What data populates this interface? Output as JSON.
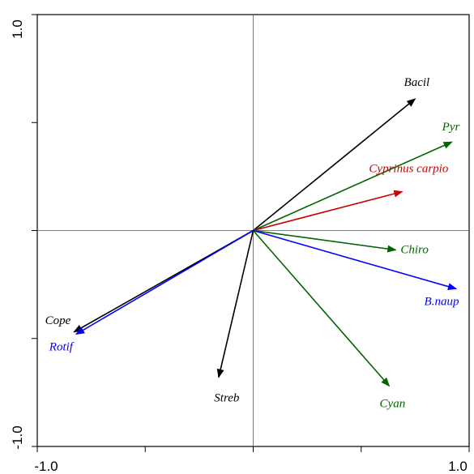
{
  "chart_data": {
    "type": "scatter",
    "subtype": "biplot-vectors",
    "title": "",
    "xlabel": "",
    "ylabel": "",
    "xlim": [
      -1.0,
      1.0
    ],
    "ylim": [
      -1.0,
      1.0
    ],
    "x_tick_labels": [
      "-1.0",
      "1.0"
    ],
    "y_tick_labels": [
      "1.0",
      "-1.0"
    ],
    "reference_lines": {
      "x": 0,
      "y": 0
    },
    "grid": false,
    "legend": "none",
    "vectors": [
      {
        "label": "Bacil",
        "x": 0.75,
        "y": 0.61,
        "color": "#000000"
      },
      {
        "label": "Pyr",
        "x": 0.92,
        "y": 0.41,
        "color": "#006400"
      },
      {
        "label": "Cyprinus carpio",
        "x": 0.69,
        "y": 0.18,
        "color": "#cc0000"
      },
      {
        "label": "Chiro",
        "x": 0.66,
        "y": -0.09,
        "color": "#006400"
      },
      {
        "label": "B.naup",
        "x": 0.94,
        "y": -0.27,
        "color": "#0000ff"
      },
      {
        "label": "Cyan",
        "x": 0.63,
        "y": -0.72,
        "color": "#006400"
      },
      {
        "label": "Streb",
        "x": -0.16,
        "y": -0.68,
        "color": "#000000"
      },
      {
        "label": "Cope",
        "x": -0.83,
        "y": -0.47,
        "color": "#000000"
      },
      {
        "label": "Rotif",
        "x": -0.82,
        "y": -0.48,
        "color": "#0000ff"
      }
    ]
  }
}
